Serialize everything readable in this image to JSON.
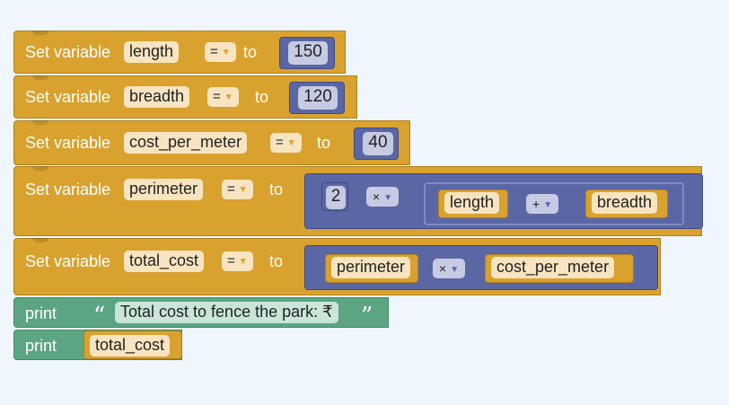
{
  "workspace": {
    "blocks": [
      {
        "label": "Set variable",
        "variable": "length",
        "operator": "=",
        "to_label": "to",
        "value": "150"
      },
      {
        "label": "Set variable",
        "variable": "breadth",
        "operator": "=",
        "to_label": "to",
        "value": "120"
      },
      {
        "label": "Set variable",
        "variable": "cost_per_meter",
        "operator": "=",
        "to_label": "to",
        "value": "40"
      },
      {
        "label": "Set variable",
        "variable": "perimeter",
        "operator": "=",
        "to_label": "to",
        "expr": {
          "left": "2",
          "op": "×",
          "inner": {
            "left": "length",
            "op": "+",
            "right": "breadth"
          }
        }
      },
      {
        "label": "Set variable",
        "variable": "total_cost",
        "operator": "=",
        "to_label": "to",
        "expr": {
          "left": "perimeter",
          "op": "×",
          "right": "cost_per_meter"
        }
      }
    ],
    "prints": [
      {
        "label": "print",
        "open_quote": "“",
        "text": "Total cost to fence the park: ₹",
        "close_quote": "”"
      },
      {
        "label": "print",
        "variable": "total_cost"
      }
    ]
  },
  "colors": {
    "variables": "#d9a22e",
    "math": "#5b67a5",
    "text": "#5ba583",
    "background": "#f0f6fd"
  }
}
